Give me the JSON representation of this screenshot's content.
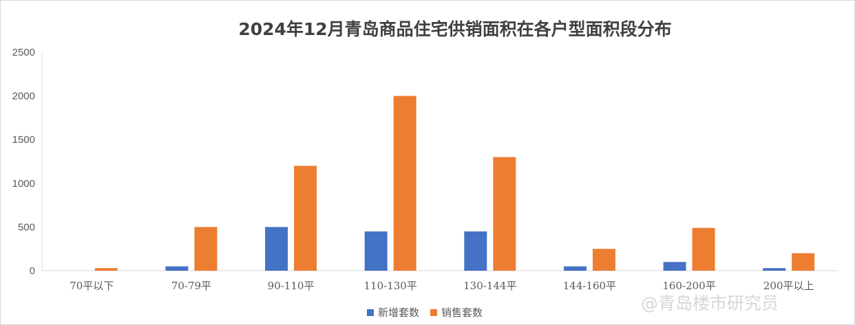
{
  "watermark": "@青岛楼市研究员",
  "chart_data": {
    "type": "bar",
    "title": "2024年12月青岛商品住宅供销面积在各户型面积段分布",
    "xlabel": "",
    "ylabel": "",
    "categories": [
      "70平以下",
      "70-79平",
      "90-110平",
      "110-130平",
      "130-144平",
      "144-160平",
      "160-200平",
      "200平以上"
    ],
    "series": [
      {
        "name": "新增套数",
        "color": "#4472C4",
        "values": [
          0,
          50,
          500,
          450,
          450,
          50,
          100,
          30
        ]
      },
      {
        "name": "销售套数",
        "color": "#ED7D31",
        "values": [
          30,
          500,
          1200,
          2000,
          1300,
          250,
          490,
          200
        ]
      }
    ],
    "ylim": [
      0,
      2500
    ],
    "yticks": [
      0,
      500,
      1000,
      1500,
      2000,
      2500
    ],
    "grid": false,
    "legend_position": "bottom"
  }
}
